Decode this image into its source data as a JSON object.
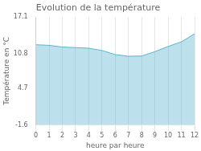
{
  "chart_data": {
    "type": "area",
    "title": "Evolution de la température",
    "xlabel": "heure par heure",
    "ylabel": "Température en °C",
    "x": [
      0,
      1,
      2,
      3,
      4,
      5,
      6,
      7,
      8,
      9,
      10,
      11,
      12
    ],
    "values": [
      12.3,
      12.2,
      11.9,
      11.8,
      11.7,
      11.3,
      10.6,
      10.3,
      10.35,
      11.1,
      12.0,
      12.8,
      14.2
    ],
    "color": "#5ab4d0",
    "xlim": [
      0,
      12
    ],
    "ylim": [
      -1.6,
      17.1
    ],
    "xticks": [
      0,
      1,
      2,
      3,
      4,
      5,
      6,
      7,
      8,
      9,
      10,
      11,
      12
    ],
    "yticks": [
      -1.6,
      4.7,
      10.8,
      17.1
    ],
    "grid": "x"
  }
}
